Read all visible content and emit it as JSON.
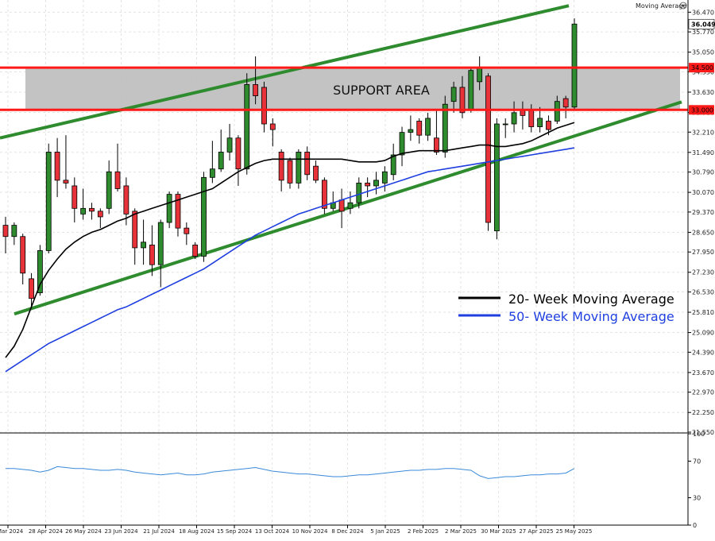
{
  "header": {
    "indicator_label": "Moving Average",
    "indicator_icon": "settings-circle-icon"
  },
  "colors": {
    "up_candle": "#2e8b2e",
    "down_candle": "#e8323a",
    "support_band": "#bdbdbd",
    "support_lines": "#ff1a1a",
    "trend_lines": "#2e8b2e",
    "ma20": "#000000",
    "ma50": "#1f3fe0",
    "rsi_line": "#3a8ad8"
  },
  "chart_data": [
    {
      "type": "candlestick",
      "annotation": "SUPPORT AREA",
      "ylim": [
        21550,
        36790
      ],
      "y_ticks": [
        "36.470",
        "35.770",
        "35.050",
        "34.350",
        "33.630",
        "32.910",
        "32.210",
        "31.490",
        "30.790",
        "30.070",
        "29.370",
        "28.650",
        "27.950",
        "27.230",
        "26.530",
        "25.810",
        "25.090",
        "24.390",
        "23.670",
        "22.970",
        "22.250",
        "21.550"
      ],
      "price_labels": [
        {
          "text": "36.049",
          "value": 36049,
          "style": "last"
        },
        {
          "text": "34.500",
          "value": 34500,
          "style": "level"
        },
        {
          "text": "33.000",
          "value": 33000,
          "style": "level"
        }
      ],
      "support_levels": [
        34500,
        33000
      ],
      "x_labels": [
        "Mar 2024",
        "28 Apr 2024",
        "26 May 2024",
        "23 Jun 2024",
        "21 Jul 2024",
        "18 Aug 2024",
        "15 Sep 2024",
        "13 Oct 2024",
        "10 Nov 2024",
        "8 Dec 2024",
        "5 Jan 2025",
        "2 Feb 2025",
        "2 Mar 2025",
        "30 Mar 2025",
        "27 Apr 2025",
        "25 May 2025"
      ],
      "candles": [
        [
          28900,
          28500,
          29200,
          27900
        ],
        [
          28500,
          28900,
          29000,
          28200
        ],
        [
          28500,
          27200,
          28600,
          26800
        ],
        [
          27000,
          26300,
          27200,
          25950
        ],
        [
          26500,
          28000,
          28200,
          26400
        ],
        [
          28000,
          31500,
          31800,
          27900
        ],
        [
          31500,
          30500,
          32000,
          29900
        ],
        [
          30500,
          30400,
          32100,
          30200
        ],
        [
          30300,
          29500,
          30600,
          29000
        ],
        [
          29300,
          29500,
          30200,
          29100
        ],
        [
          29500,
          29400,
          29700,
          29100
        ],
        [
          29400,
          29200,
          29500,
          28800
        ],
        [
          29500,
          30800,
          31200,
          29300
        ],
        [
          30800,
          30200,
          31800,
          30100
        ],
        [
          30300,
          29300,
          30600,
          28900
        ],
        [
          29400,
          28100,
          29500,
          27500
        ],
        [
          28100,
          28300,
          29100,
          27500
        ],
        [
          28200,
          27500,
          28900,
          27100
        ],
        [
          27500,
          29000,
          29100,
          26700
        ],
        [
          29000,
          30000,
          30100,
          28800
        ],
        [
          30000,
          28800,
          30100,
          28500
        ],
        [
          28800,
          28600,
          29000,
          28200
        ],
        [
          28200,
          27800,
          28300,
          27700
        ],
        [
          27800,
          30600,
          30800,
          27600
        ],
        [
          30600,
          30900,
          31900,
          30400
        ],
        [
          30900,
          31500,
          32300,
          30800
        ],
        [
          31500,
          32000,
          32500,
          31200
        ],
        [
          32000,
          30900,
          32100,
          30300
        ],
        [
          30900,
          33900,
          34300,
          30700
        ],
        [
          33900,
          33500,
          34900,
          33200
        ],
        [
          33800,
          32500,
          34000,
          32200
        ],
        [
          32500,
          32300,
          32700,
          31700
        ],
        [
          31500,
          30500,
          31600,
          30100
        ],
        [
          31200,
          30400,
          31300,
          30200
        ],
        [
          30400,
          31500,
          31600,
          30200
        ],
        [
          31500,
          30700,
          31700,
          30500
        ],
        [
          31000,
          30500,
          31200,
          30400
        ],
        [
          30500,
          29500,
          30600,
          29300
        ],
        [
          29500,
          29700,
          30100,
          29400
        ],
        [
          29800,
          29400,
          30200,
          28800
        ],
        [
          29500,
          29700,
          30100,
          29300
        ],
        [
          29700,
          30400,
          30600,
          29500
        ],
        [
          30400,
          30300,
          30600,
          29900
        ],
        [
          30300,
          30500,
          30800,
          30000
        ],
        [
          30400,
          30800,
          31000,
          30100
        ],
        [
          30700,
          31400,
          31800,
          30500
        ],
        [
          31400,
          32200,
          32400,
          31000
        ],
        [
          32200,
          32300,
          32800,
          31900
        ],
        [
          32600,
          32100,
          32700,
          31800
        ],
        [
          32100,
          32700,
          32900,
          31900
        ],
        [
          32000,
          31500,
          33000,
          31400
        ],
        [
          31500,
          33200,
          33500,
          31300
        ],
        [
          33300,
          33800,
          34000,
          32900
        ],
        [
          33800,
          32900,
          34200,
          32700
        ],
        [
          33000,
          34400,
          34500,
          32900
        ],
        [
          34000,
          34500,
          34900,
          33700
        ],
        [
          34200,
          29000,
          34300,
          28700
        ],
        [
          28700,
          32500,
          32700,
          28400
        ],
        [
          32500,
          32500,
          32700,
          32000
        ],
        [
          32500,
          32900,
          33300,
          32200
        ],
        [
          33000,
          32800,
          33300,
          32300
        ],
        [
          33000,
          32400,
          33200,
          32200
        ],
        [
          32400,
          32700,
          33100,
          32200
        ],
        [
          32600,
          32300,
          32800,
          32100
        ],
        [
          32600,
          33300,
          33500,
          32500
        ],
        [
          33400,
          33100,
          33500,
          32700
        ],
        [
          33100,
          36049,
          36250,
          33000
        ]
      ],
      "moving_averages": [
        {
          "name": "20- Week Moving Average",
          "values": [
            24200,
            24600,
            25200,
            26000,
            26800,
            27300,
            27700,
            28050,
            28300,
            28500,
            28650,
            28750,
            28900,
            29050,
            29150,
            29300,
            29400,
            29500,
            29600,
            29700,
            29800,
            29900,
            30000,
            30100,
            30200,
            30400,
            30600,
            30800,
            30950,
            31100,
            31200,
            31250,
            31250,
            31250,
            31250,
            31250,
            31250,
            31250,
            31250,
            31250,
            31200,
            31150,
            31150,
            31150,
            31200,
            31350,
            31450,
            31500,
            31550,
            31550,
            31550,
            31550,
            31600,
            31650,
            31700,
            31750,
            31750,
            31700,
            31700,
            31750,
            31800,
            31900,
            32050,
            32200,
            32350,
            32450,
            32550
          ]
        },
        {
          "name": "50- Week Moving Average",
          "values": [
            23700,
            23900,
            24100,
            24300,
            24500,
            24700,
            24850,
            25000,
            25150,
            25300,
            25450,
            25600,
            25750,
            25900,
            26000,
            26150,
            26300,
            26450,
            26600,
            26750,
            26900,
            27050,
            27200,
            27350,
            27550,
            27750,
            27950,
            28150,
            28350,
            28550,
            28700,
            28850,
            29000,
            29150,
            29300,
            29400,
            29500,
            29600,
            29700,
            29800,
            29900,
            30000,
            30100,
            30200,
            30300,
            30400,
            30500,
            30600,
            30700,
            30800,
            30850,
            30900,
            30950,
            31000,
            31050,
            31100,
            31150,
            31200,
            31250,
            31300,
            31350,
            31400,
            31450,
            31500,
            31550,
            31600,
            31650
          ]
        }
      ],
      "legend": [
        {
          "text": "20- Week Moving Average",
          "color": "#000000"
        },
        {
          "text": "50- Week Moving Average",
          "color": "#1f3fe0"
        }
      ]
    },
    {
      "type": "line",
      "ylim": [
        0,
        100
      ],
      "y_ticks": [
        "100",
        "70",
        "30",
        "0"
      ],
      "values": [
        62,
        62,
        61,
        60,
        58,
        60,
        64,
        63,
        62,
        62,
        61,
        60,
        60,
        61,
        60,
        58,
        57,
        56,
        55,
        56,
        57,
        55,
        55,
        56,
        58,
        59,
        60,
        61,
        62,
        63,
        61,
        59,
        58,
        57,
        56,
        56,
        55,
        54,
        53,
        53,
        54,
        55,
        55,
        56,
        57,
        58,
        59,
        60,
        60,
        61,
        61,
        62,
        62,
        61,
        60,
        54,
        51,
        52,
        53,
        53,
        54,
        55,
        55,
        56,
        56,
        57,
        62
      ]
    }
  ]
}
